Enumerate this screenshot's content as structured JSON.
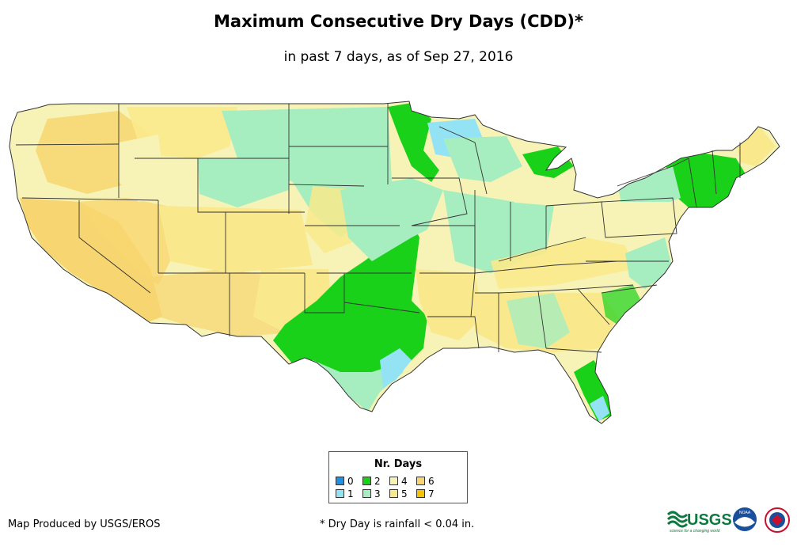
{
  "title": "Maximum Consecutive Dry Days (CDD)*",
  "subtitle": "in past 7 days, as of Sep 27, 2016",
  "legend": {
    "title": "Nr. Days",
    "items": [
      {
        "label": "0",
        "color": "#1e90e6"
      },
      {
        "label": "1",
        "color": "#93e3f5"
      },
      {
        "label": "2",
        "color": "#19d119"
      },
      {
        "label": "3",
        "color": "#a6eebf"
      },
      {
        "label": "4",
        "color": "#f7f3b6"
      },
      {
        "label": "5",
        "color": "#f9e98c"
      },
      {
        "label": "6",
        "color": "#f7d671"
      },
      {
        "label": "7",
        "color": "#f5c400"
      }
    ]
  },
  "credit": "Map Produced by USGS/EROS",
  "footnote": "* Dry Day is rainfall < 0.04 in.",
  "logos": {
    "usgs_text": "USGS",
    "usgs_tagline": "science for a changing world",
    "noaa_text": "NOAA"
  },
  "colors": {
    "state_border": "#333333",
    "background": "#ffffff"
  }
}
